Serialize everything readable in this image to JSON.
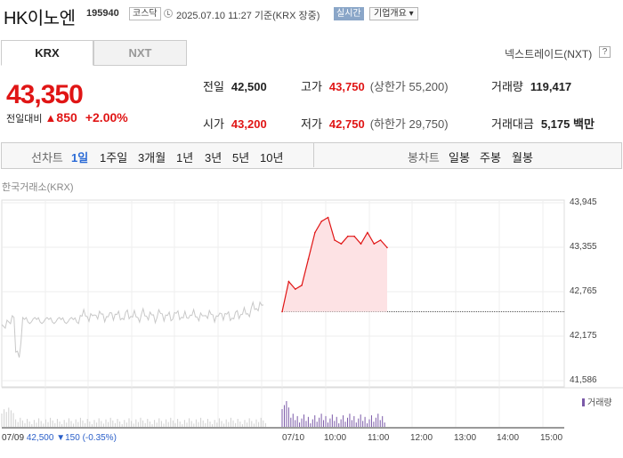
{
  "header": {
    "name": "HK이노엔",
    "code": "195940",
    "market": "코스닥",
    "datetime": "2025.07.10 11:27",
    "basis": "기준(KRX 장중)",
    "realtime": "실시간",
    "company_info": "기업개요 ▾"
  },
  "market_tabs": {
    "krx": "KRX",
    "nxt": "NXT",
    "nextrade_link": "넥스트레이드(NXT)",
    "help": "?"
  },
  "quote": {
    "price": "43,350",
    "change_label": "전일대비",
    "change_arrow": "▲",
    "change_amount": "850",
    "change_pct": "+2.00%"
  },
  "stats": {
    "prev_label": "전일",
    "prev": "42,500",
    "high_label": "고가",
    "high": "43,750",
    "upper_limit": "(상한가 55,200)",
    "volume_label": "거래량",
    "volume": "119,417",
    "open_label": "시가",
    "open": "43,200",
    "low_label": "저가",
    "low": "42,750",
    "lower_limit": "(하한가 29,750)",
    "amount_label": "거래대금",
    "amount": "5,175 백만"
  },
  "chart_tabs": {
    "line_label": "선차트",
    "periods": [
      "1일",
      "1주일",
      "3개월",
      "1년",
      "3년",
      "5년",
      "10년"
    ],
    "candle_label": "봉차트",
    "candle_periods": [
      "일봉",
      "주봉",
      "월봉"
    ]
  },
  "chart_source": "한국거래소(KRX)",
  "volume_legend": "거래량",
  "prev_day": {
    "date": "07/09",
    "close": "42,500",
    "arrow": "▼",
    "change": "150",
    "pct": "(-0.35%)"
  },
  "colors": {
    "up": "#e01515",
    "down": "#2a5fc9",
    "accent": "#2a6ad6",
    "volume": "#7b5aa8"
  },
  "chart_data": {
    "type": "line",
    "yticks": [
      "43,945",
      "43,355",
      "42,765",
      "42,175",
      "41,586"
    ],
    "ylim": [
      41586,
      43945
    ],
    "xticks": [
      "07/10",
      "10:00",
      "11:00",
      "12:00",
      "13:00",
      "14:00",
      "15:00"
    ],
    "baseline": 42500,
    "series": [
      {
        "values": [
          42500,
          42900,
          42800,
          42850,
          43200,
          43550,
          43700,
          43750,
          43450,
          43400,
          43500,
          43500,
          43400,
          43550,
          43400,
          43450,
          43350
        ]
      }
    ]
  }
}
